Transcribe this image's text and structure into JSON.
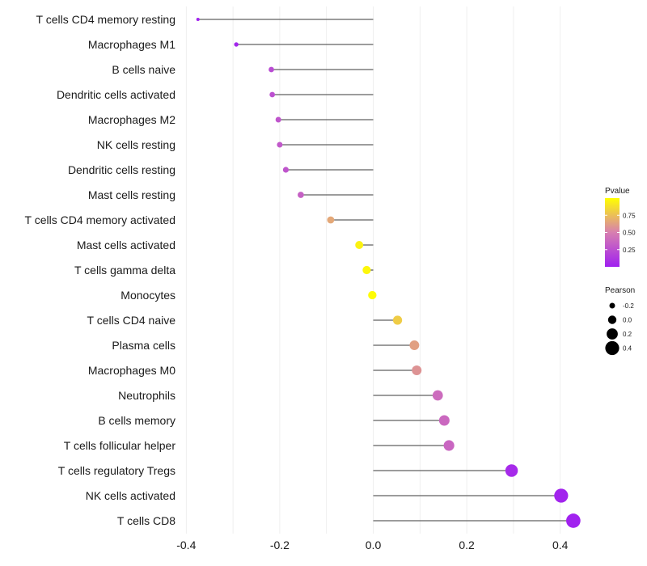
{
  "chart_data": {
    "type": "lollipop",
    "title": "",
    "xlabel": "",
    "ylabel": "",
    "xlim": [
      -0.4,
      0.45
    ],
    "x_ticks": [
      -0.4,
      -0.2,
      0.0,
      0.2,
      0.4
    ],
    "x_tick_labels": [
      "-0.4",
      "-0.2",
      "0.0",
      "0.2",
      "0.4"
    ],
    "grid": true,
    "categories": [
      "T cells CD4 memory resting",
      "Macrophages M1",
      "B cells naive",
      "Dendritic cells activated",
      "Macrophages M2",
      "NK cells resting",
      "Dendritic cells resting",
      "Mast cells resting",
      "T cells CD4 memory activated",
      "Mast cells activated",
      "T cells gamma delta",
      "Monocytes",
      "T cells CD4 naive",
      "Plasma cells",
      "Macrophages M0",
      "Neutrophils",
      "B cells memory",
      "T cells follicular helper",
      "T cells regulatory  Tregs ",
      "NK cells activated",
      "T cells CD8"
    ],
    "pearson": [
      -0.375,
      -0.293,
      -0.218,
      -0.216,
      -0.203,
      -0.2,
      -0.187,
      -0.155,
      -0.091,
      -0.03,
      -0.014,
      -0.002,
      0.052,
      0.088,
      0.093,
      0.138,
      0.152,
      0.162,
      0.296,
      0.402,
      0.428
    ],
    "pvalue": [
      0.01,
      0.03,
      0.23,
      0.25,
      0.28,
      0.3,
      0.28,
      0.34,
      0.66,
      0.95,
      0.97,
      0.99,
      0.8,
      0.63,
      0.58,
      0.4,
      0.38,
      0.37,
      0.05,
      0.02,
      0.01
    ],
    "legend_color": {
      "title": "Pvalue",
      "ticks": [
        0.25,
        0.5,
        0.75
      ],
      "tick_labels": [
        "0.25",
        "0.50",
        "0.75"
      ],
      "range": [
        0.0,
        1.0
      ],
      "low_color": "#a020f0",
      "mid_color": "#d77fb0",
      "high_color": "#ffff00",
      "position": "right"
    },
    "legend_size": {
      "title": "Pearson",
      "values": [
        -0.2,
        0.0,
        0.2,
        0.4
      ],
      "labels": [
        "-0.2",
        "0.0",
        "0.2",
        "0.4"
      ],
      "position": "right"
    },
    "colors": {
      "stem": "#3a3a3a",
      "grid": "#ebebeb",
      "legend_dot": "#000000"
    }
  }
}
